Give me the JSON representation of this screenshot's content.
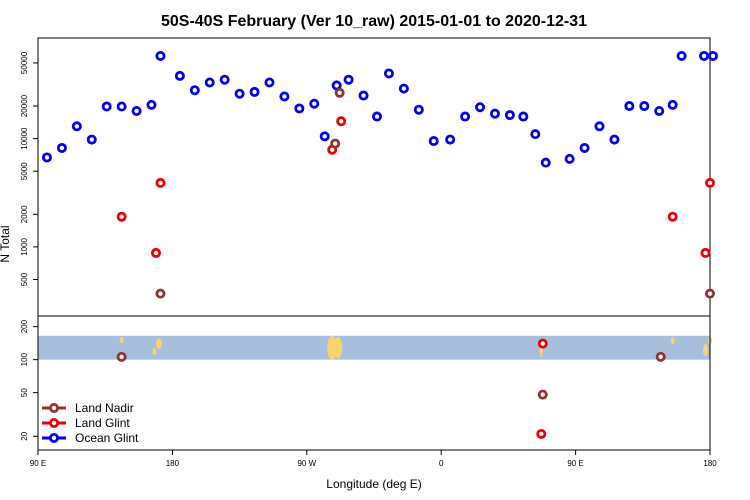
{
  "chart_data": {
    "type": "scatter",
    "title": "50S-40S February (Ver 10_raw)   2015-01-01 to 2020-12-31",
    "xlabel": "Longitude (deg E)",
    "ylabel": "N Total",
    "xlim": [
      90,
      540
    ],
    "x_tick_positions": [
      90,
      180,
      270,
      360,
      450,
      540
    ],
    "x_tick_labels": [
      "90 E",
      "180",
      "90 W",
      "0",
      "90 E",
      "180"
    ],
    "upper_panel": {
      "yscale": "log",
      "ylim": [
        230,
        85000
      ],
      "y_ticks": [
        500,
        1000,
        2000,
        5000,
        10000,
        20000,
        50000
      ],
      "y_tick_labels": [
        "500",
        "1000",
        "2000",
        "5000",
        "10000",
        "20000",
        "50000"
      ]
    },
    "lower_panel": {
      "yscale": "log",
      "ylim": [
        15,
        250
      ],
      "y_ticks": [
        20,
        50,
        100,
        200
      ],
      "y_tick_labels": [
        "20",
        "50",
        "100",
        "200"
      ],
      "band_range": [
        100,
        165
      ],
      "band_color": "#a7bedc",
      "land_color": "#f6d56e"
    },
    "series": [
      {
        "name": "Ocean Glint",
        "color": "#0000ee",
        "panel": "upper",
        "x": [
          96,
          106,
          116,
          126,
          136,
          146,
          156,
          166,
          172,
          185,
          195,
          205,
          215,
          225,
          235,
          245,
          255,
          265,
          275,
          282,
          290,
          298,
          308,
          317,
          325,
          335,
          345,
          355,
          366,
          376,
          386,
          396,
          406,
          415,
          423,
          430,
          446,
          456,
          466,
          476,
          486,
          496,
          506,
          515,
          521,
          536,
          542
        ],
        "values": [
          6700,
          8200,
          13000,
          9800,
          19800,
          19800,
          18000,
          20500,
          58000,
          38000,
          28000,
          33000,
          35000,
          26000,
          27000,
          33000,
          24500,
          19000,
          21000,
          10500,
          31000,
          35000,
          25000,
          16000,
          40000,
          29000,
          18500,
          9500,
          9800,
          16000,
          19500,
          17000,
          16500,
          16000,
          11000,
          6000,
          6500,
          8200,
          13000,
          9800,
          20000,
          20000,
          18000,
          20500,
          58000,
          58000,
          58000
        ]
      },
      {
        "name": "Land Glint",
        "color": "#ee0000",
        "panel": "upper",
        "x": [
          146,
          169,
          172,
          287,
          293,
          515,
          537,
          540
        ],
        "values": [
          1900,
          880,
          3900,
          7900,
          14500,
          1900,
          880,
          3900
        ]
      },
      {
        "name": "Land Nadir",
        "color": "#933131",
        "panel": "upper",
        "x": [
          172,
          292,
          289,
          540
        ],
        "values": [
          370,
          26500,
          9000,
          370
        ]
      },
      {
        "name": "Land Glint",
        "color": "#ee0000",
        "panel": "lower",
        "x": [
          428,
          427
        ],
        "values": [
          140,
          21
        ]
      },
      {
        "name": "Land Nadir",
        "color": "#933131",
        "panel": "lower",
        "x": [
          146,
          507,
          428
        ],
        "values": [
          106,
          106,
          48
        ]
      }
    ],
    "legend": {
      "position": "bottom-left",
      "entries": [
        {
          "label": "Land Nadir",
          "color": "#933131"
        },
        {
          "label": "Land Glint",
          "color": "#ee0000"
        },
        {
          "label": "Ocean Glint",
          "color": "#0000ee"
        }
      ]
    }
  }
}
